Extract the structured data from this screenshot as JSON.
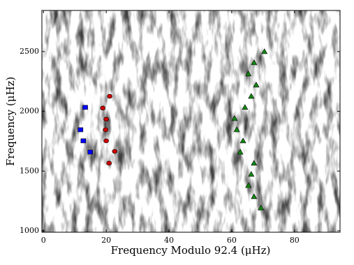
{
  "chart_data": {
    "type": "scatter",
    "xlabel": "Frequency Modulo 92.4 (μHz)",
    "ylabel": "Frequency (μHz)",
    "xlim": [
      -0.5,
      94.5
    ],
    "ylim": [
      988,
      2844
    ],
    "xticks": [
      0,
      20,
      40,
      60,
      80
    ],
    "yticks": [
      1000,
      1500,
      2000,
      2500
    ],
    "series": [
      {
        "color": "#0000ff",
        "marker": "square",
        "x": [
          13.3,
          11.8,
          12.7,
          14.9
        ],
        "values": [
          2033,
          1846,
          1753,
          1659
        ]
      },
      {
        "color": "#cc0000",
        "marker": "circle",
        "x": [
          21.1,
          18.9,
          20.0,
          19.8,
          20.0,
          22.7,
          20.9
        ],
        "values": [
          2126,
          2027,
          1934,
          1846,
          1753,
          1665,
          1566
        ]
      },
      {
        "color": "#118811",
        "marker": "triangle",
        "x": [
          70.4,
          67.1,
          65.3,
          67.8,
          66.2,
          64.2,
          60.9,
          61.6,
          63.6,
          62.7,
          67.1,
          66.2,
          65.3,
          67.1,
          69.3
        ],
        "values": [
          2500,
          2407,
          2313,
          2220,
          2126,
          2033,
          1940,
          1846,
          1753,
          1659,
          1566,
          1473,
          1379,
          1286,
          1192
        ]
      }
    ]
  }
}
